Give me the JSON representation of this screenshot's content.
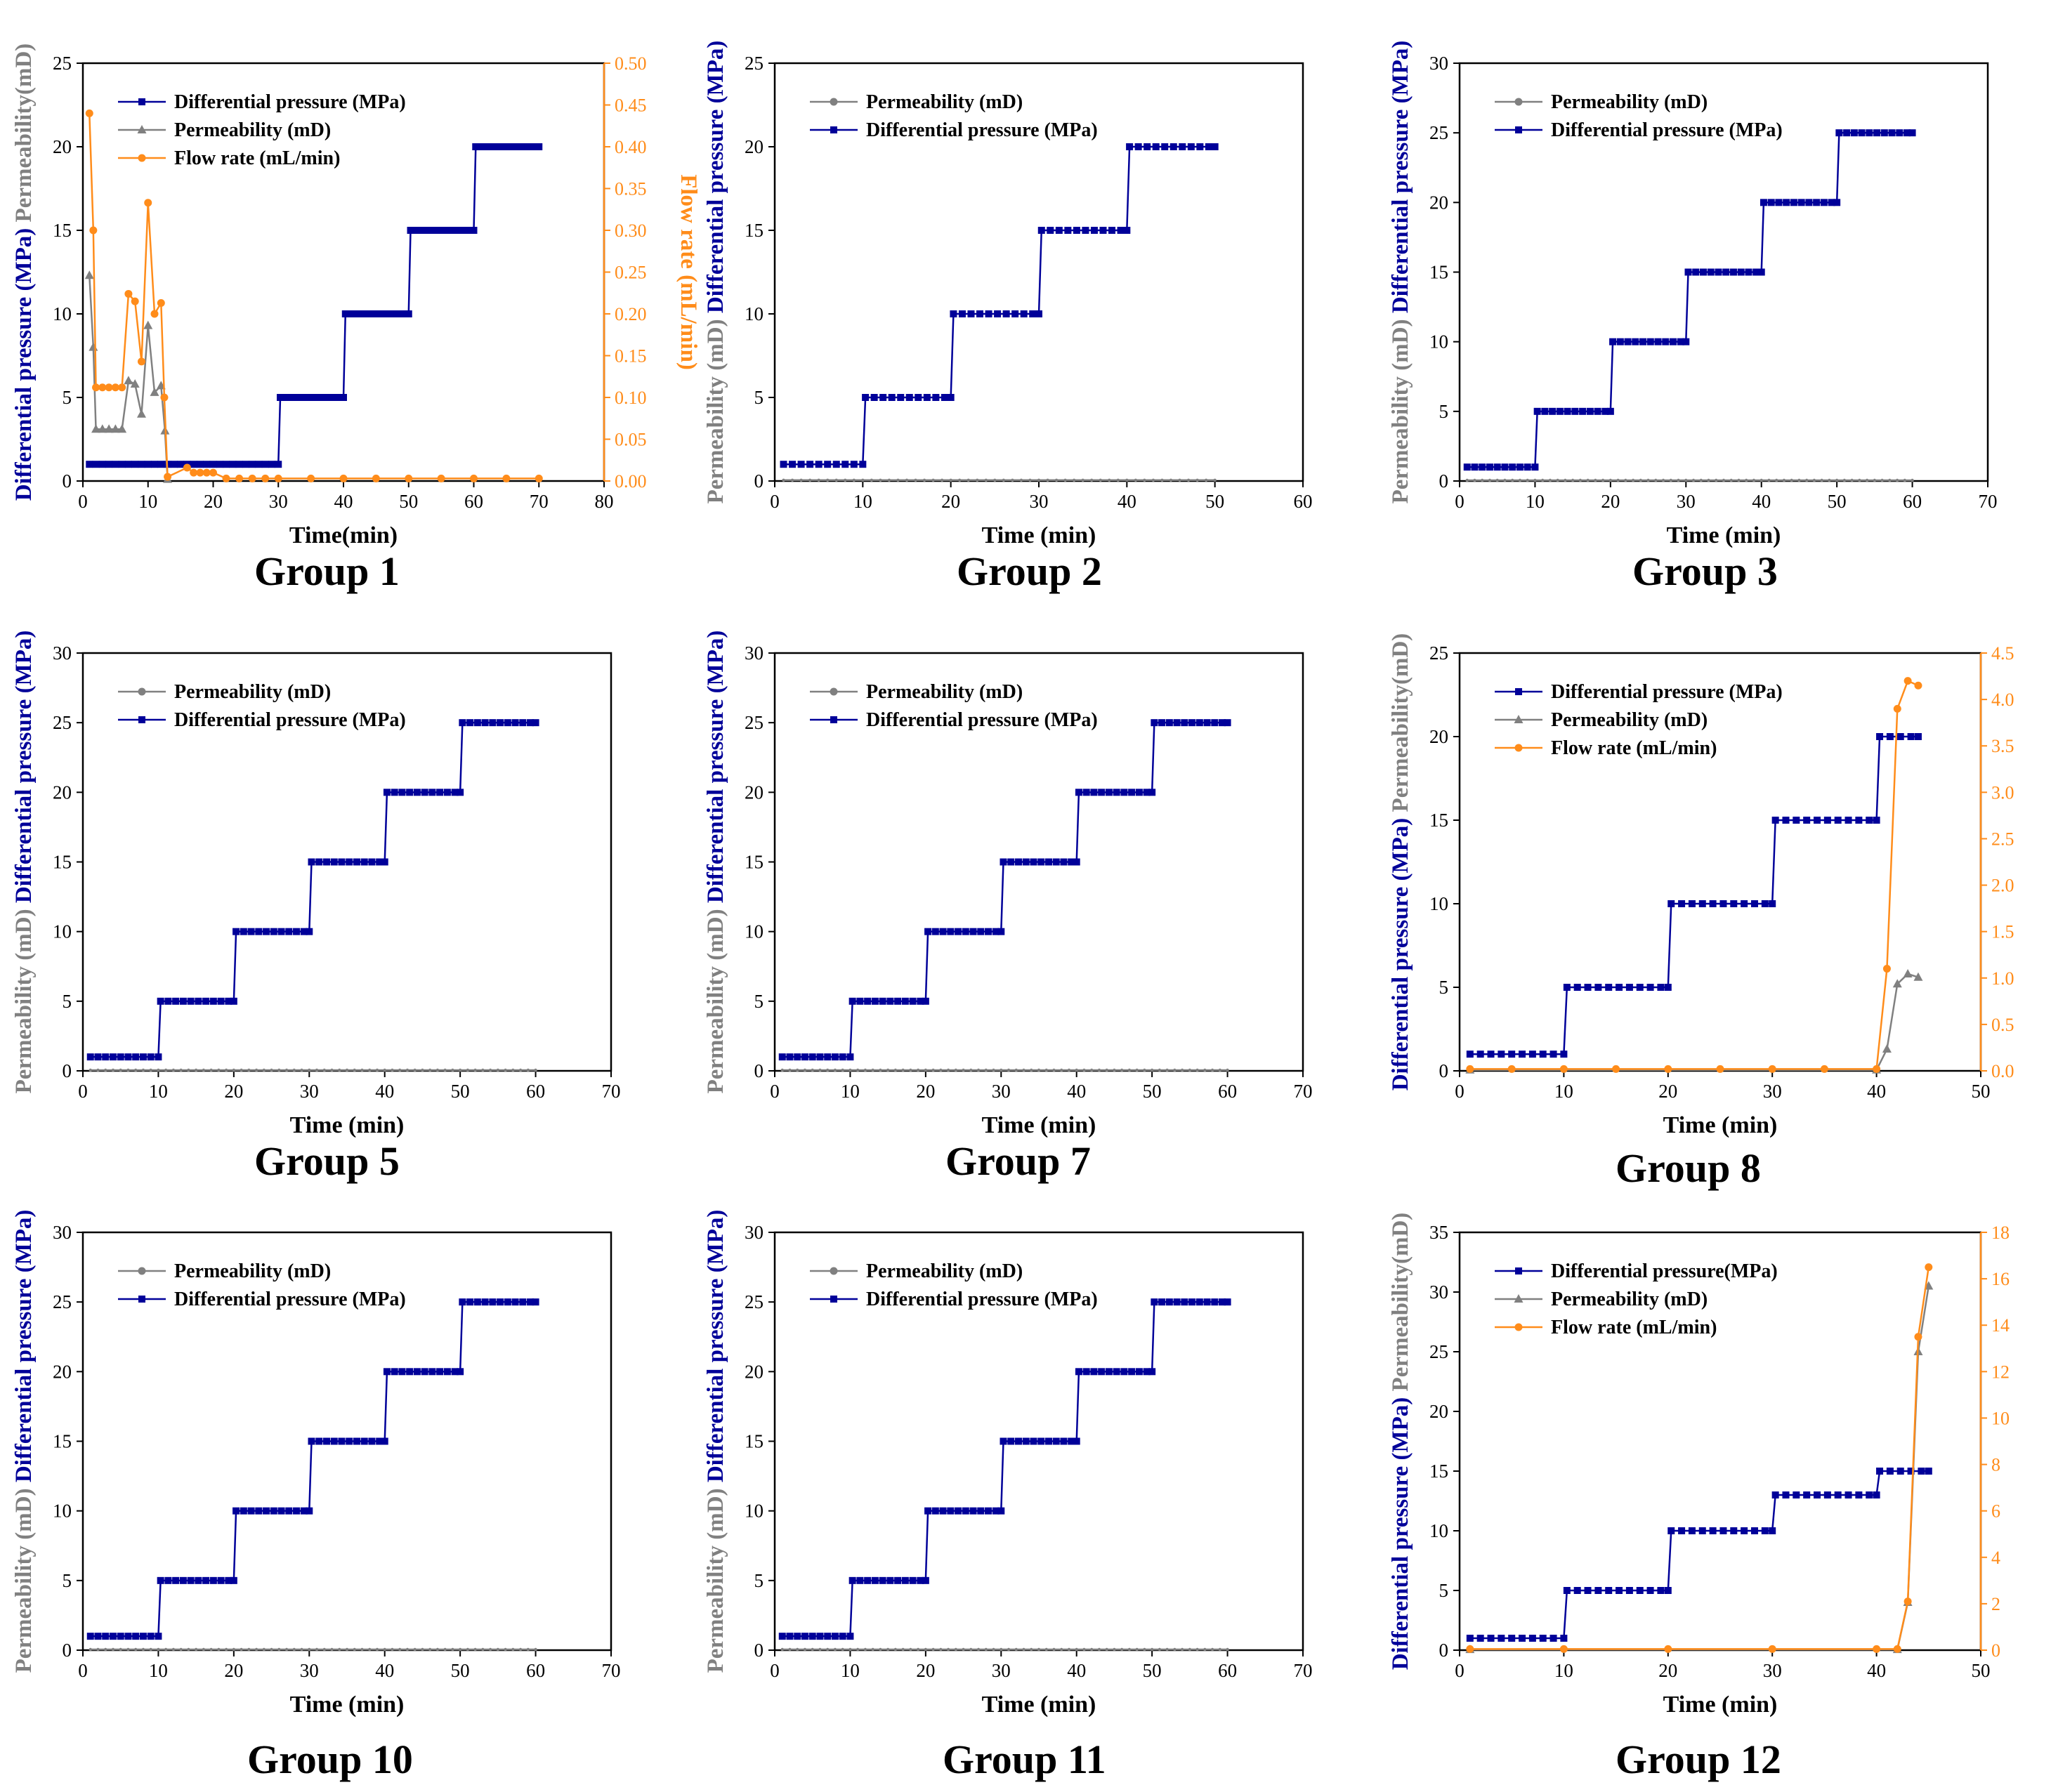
{
  "colors": {
    "dp": "#000099",
    "perm": "#808080",
    "flow": "#ff8c1a",
    "axis": "#000000"
  },
  "chart_data": [
    {
      "type": "line",
      "caption": "Group 1",
      "xlabel": "Time(min)",
      "xlim": [
        0,
        80
      ],
      "xticks": [
        0,
        10,
        20,
        30,
        40,
        50,
        60,
        70,
        80
      ],
      "ylim": [
        0,
        25
      ],
      "yticks": [
        0,
        5,
        10,
        15,
        20,
        25
      ],
      "ylabel_parts": [
        {
          "text": "Differential pressure (MPa)",
          "series": "dp"
        },
        {
          "text": "Permeability(mD)",
          "series": "perm"
        }
      ],
      "y2label": "Flow rate (mL/min)",
      "y2lim": [
        0,
        0.5
      ],
      "y2ticks": [
        "0.00",
        "0.05",
        "0.10",
        "0.15",
        "0.20",
        "0.25",
        "0.30",
        "0.35",
        "0.40",
        "0.45",
        "0.50"
      ],
      "legend": [
        {
          "label": "Differential pressure (MPa)",
          "series": "dp"
        },
        {
          "label": "Permeability (mD)",
          "series": "perm"
        },
        {
          "label": "Flow rate (mL/min)",
          "series": "flow"
        }
      ],
      "series": [
        {
          "name": "Differential pressure (MPa)",
          "key": "dp",
          "marker": "square",
          "axis": "left",
          "x": [
            1,
            30,
            30.3,
            40,
            40.3,
            50,
            50.3,
            60,
            60.3,
            70
          ],
          "y": [
            1,
            1,
            5,
            5,
            10,
            10,
            15,
            15,
            20,
            20
          ]
        },
        {
          "name": "Permeability (mD)",
          "key": "perm",
          "marker": "triangle",
          "axis": "left",
          "x": [
            1,
            1.6,
            2,
            3,
            4,
            5,
            6,
            7,
            8,
            9,
            10,
            11,
            12,
            12.6,
            13
          ],
          "y": [
            12.3,
            8,
            3.1,
            3.1,
            3.1,
            3.1,
            3.1,
            6,
            5.8,
            4,
            9.3,
            5.3,
            5.7,
            3,
            0.1
          ]
        },
        {
          "name": "Flow rate (mL/min)",
          "key": "flow",
          "marker": "circle",
          "axis": "right",
          "x": [
            1,
            1.6,
            2,
            3,
            4,
            5,
            6,
            7,
            8,
            9,
            10,
            11,
            12,
            12.5,
            13,
            16,
            17,
            18,
            19,
            20,
            22,
            24,
            26,
            28,
            30,
            35,
            40,
            45,
            50,
            55,
            60,
            65,
            70
          ],
          "y": [
            0.44,
            0.3,
            0.112,
            0.112,
            0.112,
            0.112,
            0.112,
            0.224,
            0.215,
            0.143,
            0.333,
            0.2,
            0.213,
            0.1,
            0.005,
            0.016,
            0.01,
            0.01,
            0.01,
            0.01,
            0.003,
            0.003,
            0.003,
            0.003,
            0.003,
            0.003,
            0.003,
            0.003,
            0.003,
            0.003,
            0.003,
            0.003,
            0.003
          ]
        }
      ]
    },
    {
      "type": "line",
      "caption": "Group 2",
      "xlabel": "Time (min)",
      "xlim": [
        0,
        60
      ],
      "xticks": [
        0,
        10,
        20,
        30,
        40,
        50,
        60
      ],
      "ylim": [
        0,
        25
      ],
      "yticks": [
        0,
        5,
        10,
        15,
        20,
        25
      ],
      "ylabel_parts": [
        {
          "text": "Permeability (mD)",
          "series": "perm"
        },
        {
          "text": "Differential pressure (MPa)",
          "series": "dp"
        }
      ],
      "legend": [
        {
          "label": "Permeability (mD)",
          "series": "perm"
        },
        {
          "label": "Differential pressure (MPa)",
          "series": "dp"
        }
      ],
      "series": [
        {
          "name": "Permeability (mD)",
          "key": "perm",
          "marker": "circle",
          "axis": "left",
          "x": [
            1,
            50
          ],
          "y": [
            0.05,
            0.05
          ]
        },
        {
          "name": "Differential pressure (MPa)",
          "key": "dp",
          "marker": "square",
          "axis": "left",
          "x": [
            1,
            10,
            10.3,
            20,
            20.3,
            30,
            30.3,
            40,
            40.3,
            50
          ],
          "y": [
            1,
            1,
            5,
            5,
            10,
            10,
            15,
            15,
            20,
            20
          ]
        }
      ]
    },
    {
      "type": "line",
      "caption": "Group 3",
      "xlabel": "Time (min)",
      "xlim": [
        0,
        70
      ],
      "xticks": [
        0,
        10,
        20,
        30,
        40,
        50,
        60,
        70
      ],
      "ylim": [
        0,
        30
      ],
      "yticks": [
        0,
        5,
        10,
        15,
        20,
        25,
        30
      ],
      "ylabel_parts": [
        {
          "text": "Permeability (mD)",
          "series": "perm"
        },
        {
          "text": "Differential pressure (MPa)",
          "series": "dp"
        }
      ],
      "legend": [
        {
          "label": "Permeability (mD)",
          "series": "perm"
        },
        {
          "label": "Differential pressure (MPa)",
          "series": "dp"
        }
      ],
      "series": [
        {
          "name": "Permeability (mD)",
          "key": "perm",
          "marker": "circle",
          "axis": "left",
          "x": [
            1,
            60
          ],
          "y": [
            0.05,
            0.05
          ]
        },
        {
          "name": "Differential pressure (MPa)",
          "key": "dp",
          "marker": "square",
          "axis": "left",
          "x": [
            1,
            10,
            10.3,
            20,
            20.3,
            30,
            30.3,
            40,
            40.3,
            50,
            50.3,
            60
          ],
          "y": [
            1,
            1,
            5,
            5,
            10,
            10,
            15,
            15,
            20,
            20,
            25,
            25
          ]
        }
      ]
    },
    {
      "type": "line",
      "caption": "Group 5",
      "xlabel": "Time (min)",
      "xlim": [
        0,
        70
      ],
      "xticks": [
        0,
        10,
        20,
        30,
        40,
        50,
        60,
        70
      ],
      "ylim": [
        0,
        30
      ],
      "yticks": [
        0,
        5,
        10,
        15,
        20,
        25,
        30
      ],
      "ylabel_parts": [
        {
          "text": "Permeability (mD)",
          "series": "perm"
        },
        {
          "text": "Differential pressure (MPa)",
          "series": "dp"
        }
      ],
      "legend": [
        {
          "label": "Permeability (mD)",
          "series": "perm"
        },
        {
          "label": "Differential pressure (MPa)",
          "series": "dp"
        }
      ],
      "series": [
        {
          "name": "Permeability (mD)",
          "key": "perm",
          "marker": "circle",
          "axis": "left",
          "x": [
            1,
            60
          ],
          "y": [
            0.05,
            0.05
          ]
        },
        {
          "name": "Differential pressure (MPa)",
          "key": "dp",
          "marker": "square",
          "axis": "left",
          "x": [
            1,
            10,
            10.3,
            20,
            20.3,
            30,
            30.3,
            40,
            40.3,
            50,
            50.3,
            60
          ],
          "y": [
            1,
            1,
            5,
            5,
            10,
            10,
            15,
            15,
            20,
            20,
            25,
            25
          ]
        }
      ]
    },
    {
      "type": "line",
      "caption": "Group 7",
      "xlabel": "Time (min)",
      "xlim": [
        0,
        70
      ],
      "xticks": [
        0,
        10,
        20,
        30,
        40,
        50,
        60,
        70
      ],
      "ylim": [
        0,
        30
      ],
      "yticks": [
        0,
        5,
        10,
        15,
        20,
        25,
        30
      ],
      "ylabel_parts": [
        {
          "text": "Permeability (mD)",
          "series": "perm"
        },
        {
          "text": "Differential pressure (MPa)",
          "series": "dp"
        }
      ],
      "legend": [
        {
          "label": "Permeability (mD)",
          "series": "perm"
        },
        {
          "label": "Differential pressure (MPa)",
          "series": "dp"
        }
      ],
      "series": [
        {
          "name": "Permeability (mD)",
          "key": "perm",
          "marker": "circle",
          "axis": "left",
          "x": [
            1,
            60
          ],
          "y": [
            0.05,
            0.05
          ]
        },
        {
          "name": "Differential pressure (MPa)",
          "key": "dp",
          "marker": "square",
          "axis": "left",
          "x": [
            1,
            10,
            10.3,
            20,
            20.3,
            30,
            30.3,
            40,
            40.3,
            50,
            50.3,
            60
          ],
          "y": [
            1,
            1,
            5,
            5,
            10,
            10,
            15,
            15,
            20,
            20,
            25,
            25
          ]
        }
      ]
    },
    {
      "type": "line",
      "caption": "Group 8",
      "xlabel": "Time (min)",
      "xlim": [
        0,
        50
      ],
      "xticks": [
        0,
        10,
        20,
        30,
        40,
        50
      ],
      "ylim": [
        0,
        25
      ],
      "yticks": [
        0,
        5,
        10,
        15,
        20,
        25
      ],
      "ylabel_parts": [
        {
          "text": "Differential pressure (MPa)",
          "series": "dp"
        },
        {
          "text": "Permeability(mD)",
          "series": "perm"
        }
      ],
      "y2label": "Flow rate (mL/min)",
      "y2lim": [
        0,
        4.5
      ],
      "y2ticks": [
        "0.0",
        "0.5",
        "1.0",
        "1.5",
        "2.0",
        "2.5",
        "3.0",
        "3.5",
        "4.0",
        "4.5"
      ],
      "legend": [
        {
          "label": "Differential pressure (MPa)",
          "series": "dp"
        },
        {
          "label": "Permeability (mD)",
          "series": "perm"
        },
        {
          "label": "Flow rate (mL/min)",
          "series": "flow"
        }
      ],
      "series": [
        {
          "name": "Differential pressure (MPa)",
          "key": "dp",
          "marker": "square",
          "axis": "left",
          "x": [
            1,
            10,
            10.3,
            20,
            20.3,
            30,
            30.3,
            40,
            40.3,
            44
          ],
          "y": [
            1,
            1,
            5,
            5,
            10,
            10,
            15,
            15,
            20,
            20
          ]
        },
        {
          "name": "Permeability (mD)",
          "key": "perm",
          "marker": "triangle",
          "axis": "left",
          "x": [
            1,
            40,
            41,
            42,
            43,
            44
          ],
          "y": [
            0.05,
            0.05,
            1.3,
            5.2,
            5.8,
            5.6
          ]
        },
        {
          "name": "Flow rate (mL/min)",
          "key": "flow",
          "marker": "circle",
          "axis": "right",
          "x": [
            1,
            5,
            10,
            15,
            20,
            25,
            30,
            35,
            40,
            41,
            42,
            43,
            44
          ],
          "y": [
            0.02,
            0.02,
            0.02,
            0.02,
            0.02,
            0.02,
            0.02,
            0.02,
            0.02,
            1.1,
            3.9,
            4.2,
            4.15
          ]
        }
      ]
    },
    {
      "type": "line",
      "caption": "Group 10",
      "xlabel": "Time (min)",
      "xlim": [
        0,
        70
      ],
      "xticks": [
        0,
        10,
        20,
        30,
        40,
        50,
        60,
        70
      ],
      "ylim": [
        0,
        30
      ],
      "yticks": [
        0,
        5,
        10,
        15,
        20,
        25,
        30
      ],
      "ylabel_parts": [
        {
          "text": "Permeability (mD)",
          "series": "perm"
        },
        {
          "text": "Differential pressure (MPa)",
          "series": "dp"
        }
      ],
      "legend": [
        {
          "label": "Permeability (mD)",
          "series": "perm"
        },
        {
          "label": "Differential pressure (MPa)",
          "series": "dp"
        }
      ],
      "series": [
        {
          "name": "Permeability (mD)",
          "key": "perm",
          "marker": "circle",
          "axis": "left",
          "x": [
            1,
            60
          ],
          "y": [
            0.05,
            0.05
          ]
        },
        {
          "name": "Differential pressure (MPa)",
          "key": "dp",
          "marker": "square",
          "axis": "left",
          "x": [
            1,
            10,
            10.3,
            20,
            20.3,
            30,
            30.3,
            40,
            40.3,
            50,
            50.3,
            60
          ],
          "y": [
            1,
            1,
            5,
            5,
            10,
            10,
            15,
            15,
            20,
            20,
            25,
            25
          ]
        }
      ]
    },
    {
      "type": "line",
      "caption": "Group 11",
      "xlabel": "Time (min)",
      "xlim": [
        0,
        70
      ],
      "xticks": [
        0,
        10,
        20,
        30,
        40,
        50,
        60,
        70
      ],
      "ylim": [
        0,
        30
      ],
      "yticks": [
        0,
        5,
        10,
        15,
        20,
        25,
        30
      ],
      "ylabel_parts": [
        {
          "text": "Permeability (mD)",
          "series": "perm"
        },
        {
          "text": "Differential pressure (MPa)",
          "series": "dp"
        }
      ],
      "legend": [
        {
          "label": "Permeability (mD)",
          "series": "perm"
        },
        {
          "label": "Differential pressure (MPa)",
          "series": "dp"
        }
      ],
      "series": [
        {
          "name": "Permeability (mD)",
          "key": "perm",
          "marker": "circle",
          "axis": "left",
          "x": [
            1,
            60
          ],
          "y": [
            0.05,
            0.05
          ]
        },
        {
          "name": "Differential pressure (MPa)",
          "key": "dp",
          "marker": "square",
          "axis": "left",
          "x": [
            1,
            10,
            10.3,
            20,
            20.3,
            30,
            30.3,
            40,
            40.3,
            50,
            50.3,
            60
          ],
          "y": [
            1,
            1,
            5,
            5,
            10,
            10,
            15,
            15,
            20,
            20,
            25,
            25
          ]
        }
      ]
    },
    {
      "type": "line",
      "caption": "Group 12",
      "xlabel": "Time (min)",
      "xlim": [
        0,
        50
      ],
      "xticks": [
        0,
        10,
        20,
        30,
        40,
        50
      ],
      "ylim": [
        0,
        35
      ],
      "yticks": [
        0,
        5,
        10,
        15,
        20,
        25,
        30,
        35
      ],
      "ylabel_parts": [
        {
          "text": "Differential pressure (MPa)",
          "series": "dp"
        },
        {
          "text": "Permeability(mD)",
          "series": "perm"
        }
      ],
      "y2label": "Flow rate (mL/min)",
      "y2lim": [
        0,
        18
      ],
      "y2ticks": [
        "0",
        "2",
        "4",
        "6",
        "8",
        "10",
        "12",
        "14",
        "16",
        "18"
      ],
      "legend": [
        {
          "label": "Differential pressure(MPa)",
          "series": "dp"
        },
        {
          "label": "Permeability (mD)",
          "series": "perm"
        },
        {
          "label": "Flow rate (mL/min)",
          "series": "flow"
        }
      ],
      "series": [
        {
          "name": "Differential pressure(MPa)",
          "key": "dp",
          "marker": "square",
          "axis": "left",
          "x": [
            1,
            10,
            10.3,
            20,
            20.3,
            30,
            30.3,
            40,
            40.3,
            45
          ],
          "y": [
            1,
            1,
            5,
            5,
            10,
            10,
            13,
            13,
            15,
            15
          ]
        },
        {
          "name": "Permeability (mD)",
          "key": "perm",
          "marker": "triangle",
          "axis": "left",
          "x": [
            1,
            42,
            43,
            44,
            45
          ],
          "y": [
            0.05,
            0.05,
            4,
            25,
            30.5
          ]
        },
        {
          "name": "Flow rate (mL/min)",
          "key": "flow",
          "marker": "circle",
          "axis": "right",
          "x": [
            1,
            10,
            20,
            30,
            40,
            42,
            43,
            44,
            45
          ],
          "y": [
            0.05,
            0.05,
            0.05,
            0.05,
            0.05,
            0.05,
            2.1,
            13.5,
            16.5
          ]
        }
      ]
    }
  ]
}
